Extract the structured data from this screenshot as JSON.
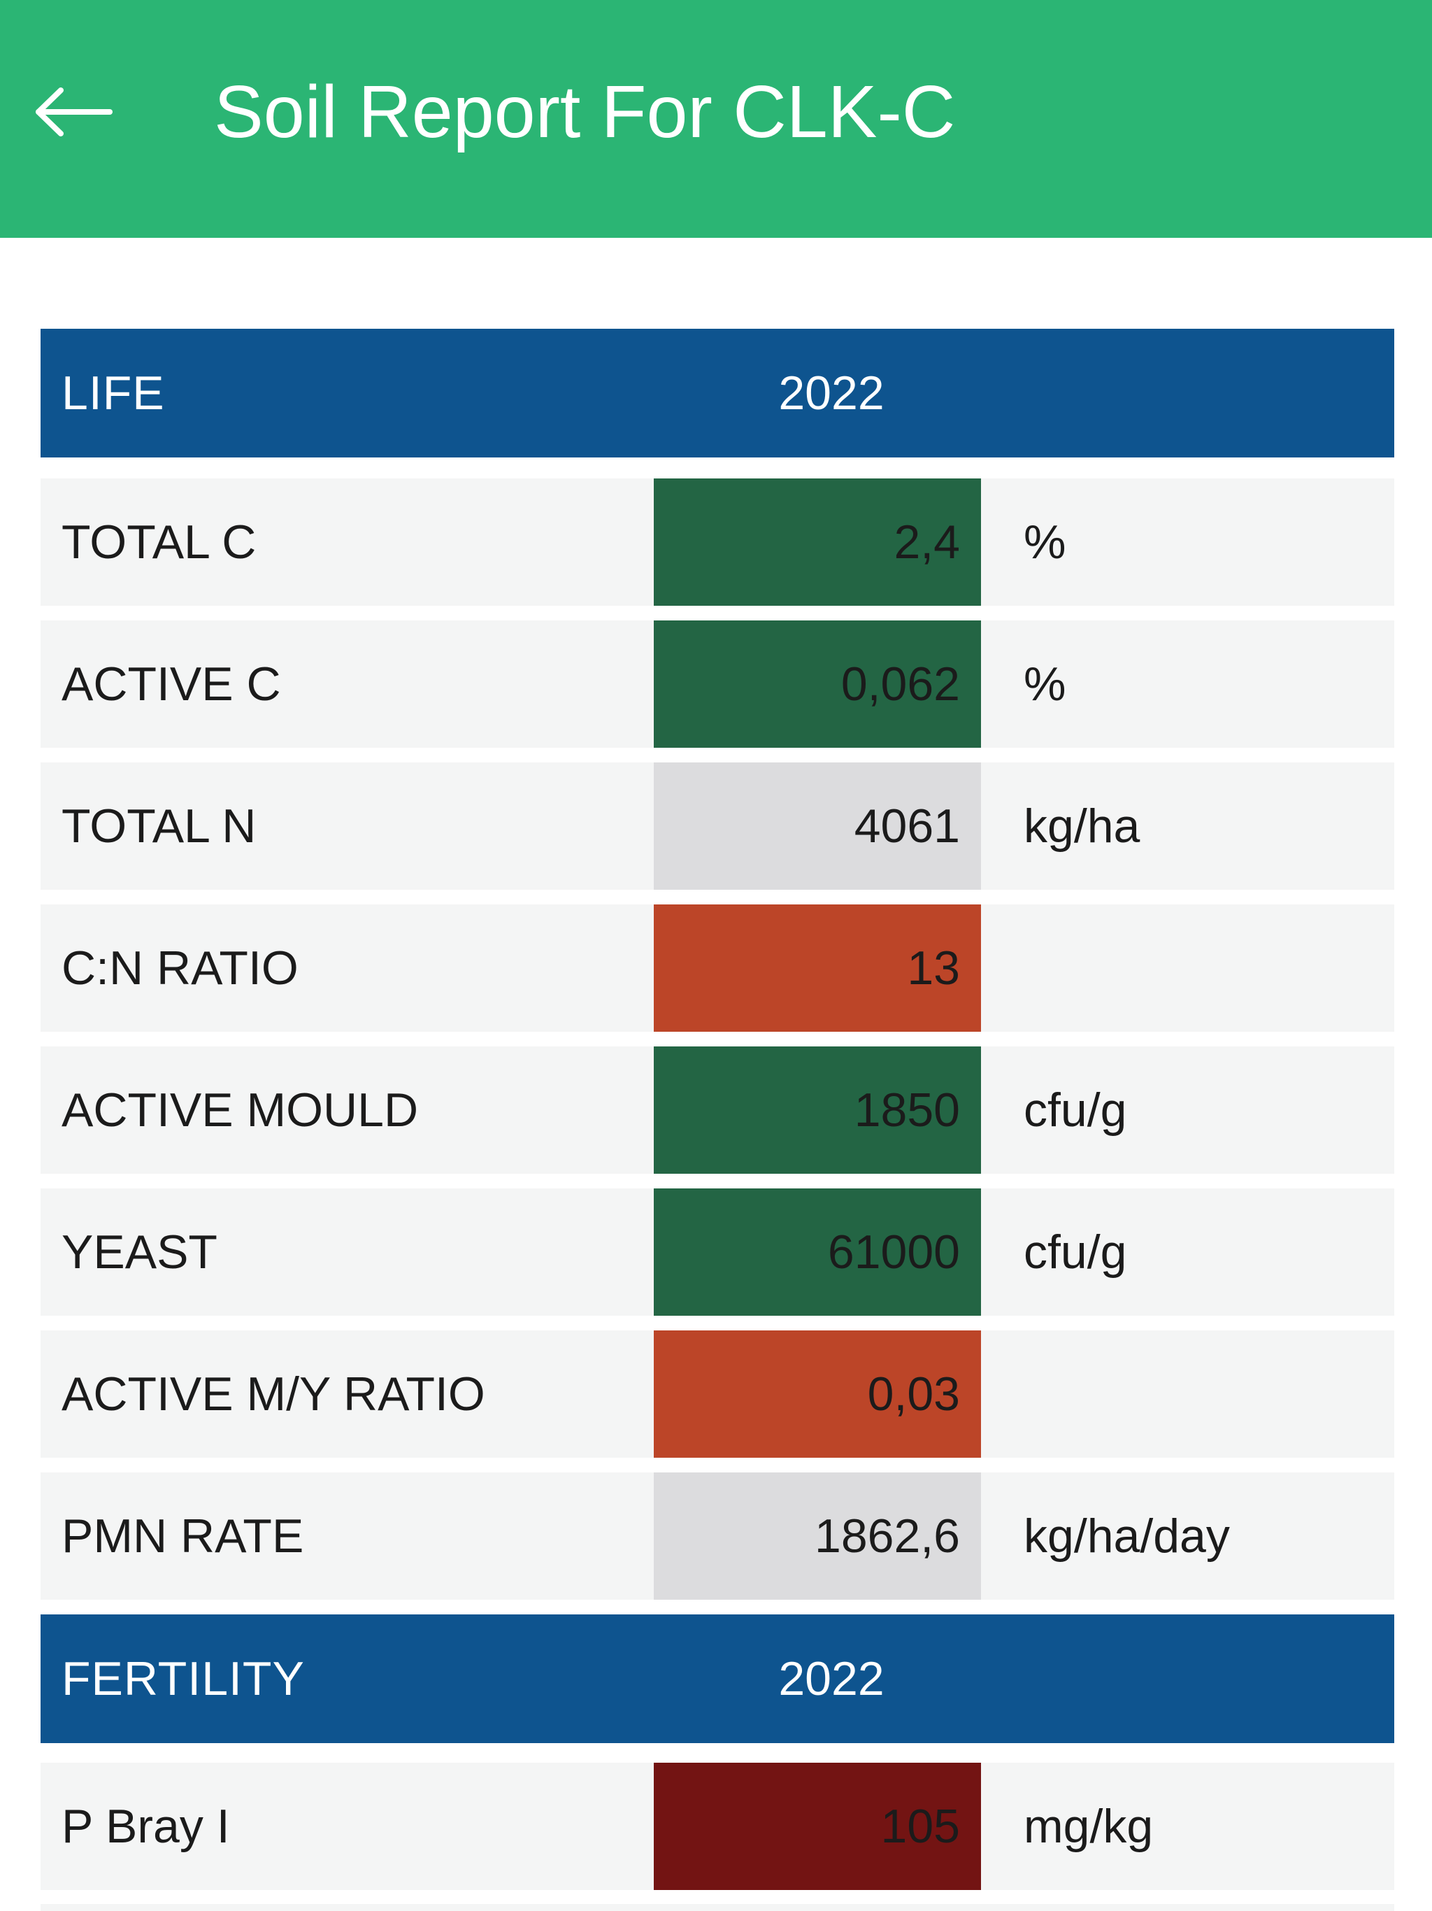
{
  "header": {
    "title": "Soil Report For CLK-C",
    "back_icon": "arrow-left-icon"
  },
  "colors": {
    "appbar": "#2bb574",
    "section_header": "#0e548f",
    "row_bg": "#f4f5f5",
    "good": "#236544",
    "neutral": "#dcdcde",
    "warning": "#bc4528",
    "critical": "#731413"
  },
  "sections": [
    {
      "title": "LIFE",
      "year": "2022",
      "rows": [
        {
          "label": "TOTAL C",
          "value": "2,4",
          "unit": "%",
          "status": "good"
        },
        {
          "label": "ACTIVE C",
          "value": "0,062",
          "unit": "%",
          "status": "good"
        },
        {
          "label": "TOTAL N",
          "value": "4061",
          "unit": "kg/ha",
          "status": "neutral"
        },
        {
          "label": "C:N RATIO",
          "value": "13",
          "unit": "",
          "status": "warning"
        },
        {
          "label": "ACTIVE MOULD",
          "value": "1850",
          "unit": "cfu/g",
          "status": "good"
        },
        {
          "label": "YEAST",
          "value": "61000",
          "unit": "cfu/g",
          "status": "good"
        },
        {
          "label": "ACTIVE M/Y RATIO",
          "value": "0,03",
          "unit": "",
          "status": "warning"
        },
        {
          "label": "PMN RATE",
          "value": "1862,6",
          "unit": "kg/ha/day",
          "status": "neutral"
        }
      ]
    },
    {
      "title": "FERTILITY",
      "year": "2022",
      "rows": [
        {
          "label": "P Bray I",
          "value": "105",
          "unit": "mg/kg",
          "status": "critical"
        }
      ]
    }
  ]
}
